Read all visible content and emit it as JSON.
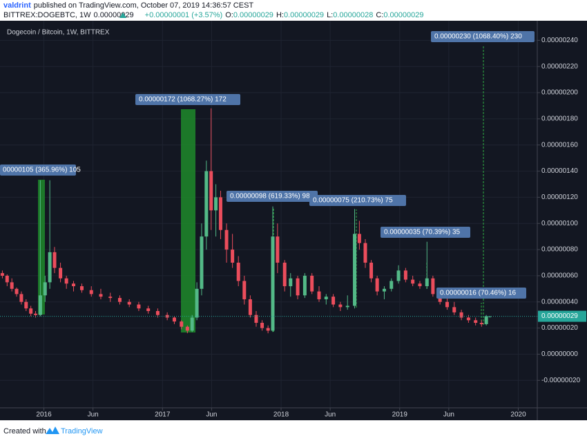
{
  "header": {
    "author": "valdrint",
    "published": "published on TradingView.com, October 07, 2019 14:36:57 CEST",
    "symbol": "BITTREX:DOGEBTC, 1W",
    "price": "0.00000029",
    "change": "+0.00000001 (+3.57%)",
    "ohlc": [
      {
        "label": "O:",
        "value": "0.00000029"
      },
      {
        "label": "H:",
        "value": "0.00000029"
      },
      {
        "label": "L:",
        "value": "0.00000028"
      },
      {
        "label": "C:",
        "value": "0.00000029"
      }
    ]
  },
  "chart_data": {
    "type": "candlestick",
    "title": "Dogecoin / Bitcoin, 1W, BITTREX",
    "up_color": "#53b987",
    "down_color": "#eb4d5c",
    "xlim": [
      2015.63,
      2020.16
    ],
    "ylim": [
      -4.1e-07,
      2.55e-06
    ],
    "xticks": [
      2016,
      {
        "value": 2016.414,
        "label": "Jun"
      },
      2017,
      {
        "value": 2017.414,
        "label": "Jun"
      },
      2018,
      {
        "value": 2018.414,
        "label": "Jun"
      },
      2019,
      {
        "value": 2019.414,
        "label": "Jun"
      },
      2020
    ],
    "yticks": [
      {
        "value": 2.4e-06,
        "label": "0.00000240"
      },
      {
        "value": 2.2e-06,
        "label": "0.00000220"
      },
      {
        "value": 2e-06,
        "label": "0.00000200"
      },
      {
        "value": 1.8e-06,
        "label": "0.00000180"
      },
      {
        "value": 1.6e-06,
        "label": "0.00000160"
      },
      {
        "value": 1.4e-06,
        "label": "0.00000140"
      },
      {
        "value": 1.2e-06,
        "label": "0.00000120"
      },
      {
        "value": 1e-06,
        "label": "0.00000100"
      },
      {
        "value": 8e-07,
        "label": "0.00000080"
      },
      {
        "value": 6e-07,
        "label": "0.00000060"
      },
      {
        "value": 4e-07,
        "label": "0.00000040"
      },
      {
        "value": 2e-07,
        "label": "0.00000020"
      },
      {
        "value": 0,
        "label": "0.00000000"
      },
      {
        "value": -2e-07,
        "label": "-0.00000020"
      }
    ],
    "grid": true,
    "last_price": {
      "value": 2.9e-07,
      "label": "0.00000029"
    },
    "annotations": [
      "00000105 (365.96%) 105",
      "0.00000172 (1068.27%) 172",
      "0.00000098 (619.33%) 98",
      "0.00000075 (210.73%) 75",
      "0.00000035 (70.39%) 35",
      "0.00000016 (70.46%) 16",
      "0.00000230 (1068.40%) 230"
    ],
    "x": [
      2015.65,
      2015.69,
      2015.73,
      2015.77,
      2015.81,
      2015.85,
      2015.89,
      2015.93,
      2015.97,
      2016.01,
      2016.05,
      2016.09,
      2016.14,
      2016.19,
      2016.25,
      2016.32,
      2016.4,
      2016.48,
      2016.56,
      2016.64,
      2016.72,
      2016.8,
      2016.88,
      2016.96,
      2017.04,
      2017.1,
      2017.16,
      2017.21,
      2017.25,
      2017.29,
      2017.33,
      2017.37,
      2017.41,
      2017.45,
      2017.49,
      2017.54,
      2017.59,
      2017.64,
      2017.69,
      2017.74,
      2017.79,
      2017.84,
      2017.89,
      2017.93,
      2017.97,
      2018.03,
      2018.08,
      2018.14,
      2018.2,
      2018.26,
      2018.32,
      2018.38,
      2018.44,
      2018.5,
      2018.56,
      2018.62,
      2018.66,
      2018.71,
      2018.76,
      2018.81,
      2018.87,
      2018.93,
      2018.99,
      2019.05,
      2019.11,
      2019.17,
      2019.23,
      2019.28,
      2019.34,
      2019.4,
      2019.46,
      2019.52,
      2019.58,
      2019.64,
      2019.69,
      2019.73,
      2019.76
    ],
    "open": [
      6.2e-07,
      6e-07,
      5.5e-07,
      5e-07,
      4.6e-07,
      4e-07,
      3.5e-07,
      3.1e-07,
      3e-07,
      4.5e-07,
      5.5e-07,
      7.8e-07,
      6.6e-07,
      5.8e-07,
      5.4e-07,
      5.2e-07,
      4.9e-07,
      4.6e-07,
      4.4e-07,
      4.3e-07,
      4e-07,
      3.8e-07,
      3.5e-07,
      3.3e-07,
      3e-07,
      2.8e-07,
      2.5e-07,
      2.1e-07,
      1.8e-07,
      2.8e-07,
      5e-07,
      9e-07,
      1.4e-06,
      1.1e-06,
      1.2e-06,
      9.5e-07,
      8e-07,
      7e-07,
      5.6e-07,
      4.2e-07,
      3e-07,
      2.4e-07,
      2e-07,
      1.8e-07,
      9e-07,
      7e-07,
      5.2e-07,
      5.8e-07,
      4.5e-07,
      6e-07,
      4.8e-07,
      4.2e-07,
      4.4e-07,
      3.8e-07,
      3.6e-07,
      3.7e-07,
      9.2e-07,
      8.5e-07,
      7e-07,
      5.8e-07,
      4.8e-07,
      5e-07,
      5.6e-07,
      6.4e-07,
      5.7e-07,
      5.4e-07,
      5.2e-07,
      5.8e-07,
      4.6e-07,
      4e-07,
      3.6e-07,
      3.2e-07,
      2.8e-07,
      2.6e-07,
      2.4e-07,
      2.3e-07,
      2.9e-07
    ],
    "high": [
      6.4e-07,
      6.1e-07,
      5.8e-07,
      5.1e-07,
      4.8e-07,
      4.2e-07,
      3.7e-07,
      3.3e-07,
      1.33e-06,
      6e-07,
      1.33e-06,
      8.2e-07,
      7e-07,
      6e-07,
      5.6e-07,
      5.4e-07,
      5.2e-07,
      5e-07,
      4.7e-07,
      4.5e-07,
      4.2e-07,
      4e-07,
      3.7e-07,
      3.5e-07,
      3.2e-07,
      2.9e-07,
      2.6e-07,
      2.2e-07,
      3e-07,
      5.5e-07,
      1e-06,
      1.48e-06,
      1.88e-06,
      1.3e-06,
      1.25e-06,
      1e-06,
      9.2e-07,
      7.5e-07,
      6e-07,
      4.5e-07,
      3.3e-07,
      2.6e-07,
      2.2e-07,
      1.13e-06,
      1e-06,
      7.2e-07,
      6.2e-07,
      6e-07,
      6.2e-07,
      6.2e-07,
      5.2e-07,
      4.6e-07,
      4.6e-07,
      4e-07,
      4.5e-07,
      1.11e-06,
      1.02e-06,
      8.8e-07,
      7.2e-07,
      6e-07,
      5.2e-07,
      5.8e-07,
      6.8e-07,
      6.6e-07,
      6e-07,
      5.6e-07,
      8.6e-07,
      6e-07,
      4.8e-07,
      4.4e-07,
      4e-07,
      3.4e-07,
      3e-07,
      2.8e-07,
      2.6e-07,
      3e-07,
      2.9e-07
    ],
    "low": [
      5.8e-07,
      5.2e-07,
      4.8e-07,
      4.4e-07,
      3.8e-07,
      3.3e-07,
      2.9e-07,
      2.8e-07,
      2.9e-07,
      4e-07,
      5e-07,
      6.2e-07,
      5.5e-07,
      5e-07,
      4.8e-07,
      4.7e-07,
      4.4e-07,
      4.2e-07,
      4e-07,
      3.8e-07,
      3.6e-07,
      3.3e-07,
      3.1e-07,
      2.8e-07,
      2.6e-07,
      2.3e-07,
      1.9e-07,
      1.6e-07,
      1.7e-07,
      2.6e-07,
      4.5e-07,
      8e-07,
      9.5e-07,
      9e-07,
      8.8e-07,
      7e-07,
      6.6e-07,
      5.2e-07,
      3.8e-07,
      2.8e-07,
      2.1e-07,
      1.8e-07,
      1.6e-07,
      1.7e-07,
      6.2e-07,
      4.8e-07,
      4.4e-07,
      4.2e-07,
      4.3e-07,
      4.6e-07,
      4e-07,
      3.8e-07,
      3.6e-07,
      3.3e-07,
      3.4e-07,
      3.5e-07,
      8e-07,
      6.6e-07,
      5.5e-07,
      4.5e-07,
      4.2e-07,
      4.8e-07,
      5.4e-07,
      5.5e-07,
      5.2e-07,
      5e-07,
      5e-07,
      4.4e-07,
      3.8e-07,
      3.4e-07,
      3e-07,
      2.6e-07,
      2.4e-07,
      2.2e-07,
      2.1e-07,
      2.2e-07,
      2.8e-07
    ],
    "close": [
      6e-07,
      5.5e-07,
      5e-07,
      4.6e-07,
      4e-07,
      3.5e-07,
      3.1e-07,
      3e-07,
      4.5e-07,
      5.5e-07,
      7.8e-07,
      6.6e-07,
      5.8e-07,
      5.4e-07,
      5.2e-07,
      4.9e-07,
      4.6e-07,
      4.4e-07,
      4.3e-07,
      4e-07,
      3.8e-07,
      3.5e-07,
      3.3e-07,
      3e-07,
      2.8e-07,
      2.5e-07,
      2.1e-07,
      1.8e-07,
      2.8e-07,
      5e-07,
      9e-07,
      1.4e-06,
      1.1e-06,
      1.2e-06,
      9.5e-07,
      8e-07,
      7e-07,
      5.6e-07,
      4.2e-07,
      3e-07,
      2.4e-07,
      2e-07,
      1.8e-07,
      9e-07,
      7e-07,
      5.2e-07,
      5.8e-07,
      4.5e-07,
      6e-07,
      4.8e-07,
      4.2e-07,
      4.4e-07,
      3.8e-07,
      3.6e-07,
      3.7e-07,
      9.2e-07,
      8.5e-07,
      7e-07,
      5.8e-07,
      4.8e-07,
      5e-07,
      5.6e-07,
      6.4e-07,
      5.7e-07,
      5.4e-07,
      5.2e-07,
      5.8e-07,
      4.6e-07,
      4e-07,
      3.6e-07,
      3.2e-07,
      2.8e-07,
      2.6e-07,
      2.4e-07,
      2.3e-07,
      2.9e-07,
      2.9e-07
    ]
  },
  "footer": {
    "created": "Created with",
    "brand": "TradingView"
  }
}
